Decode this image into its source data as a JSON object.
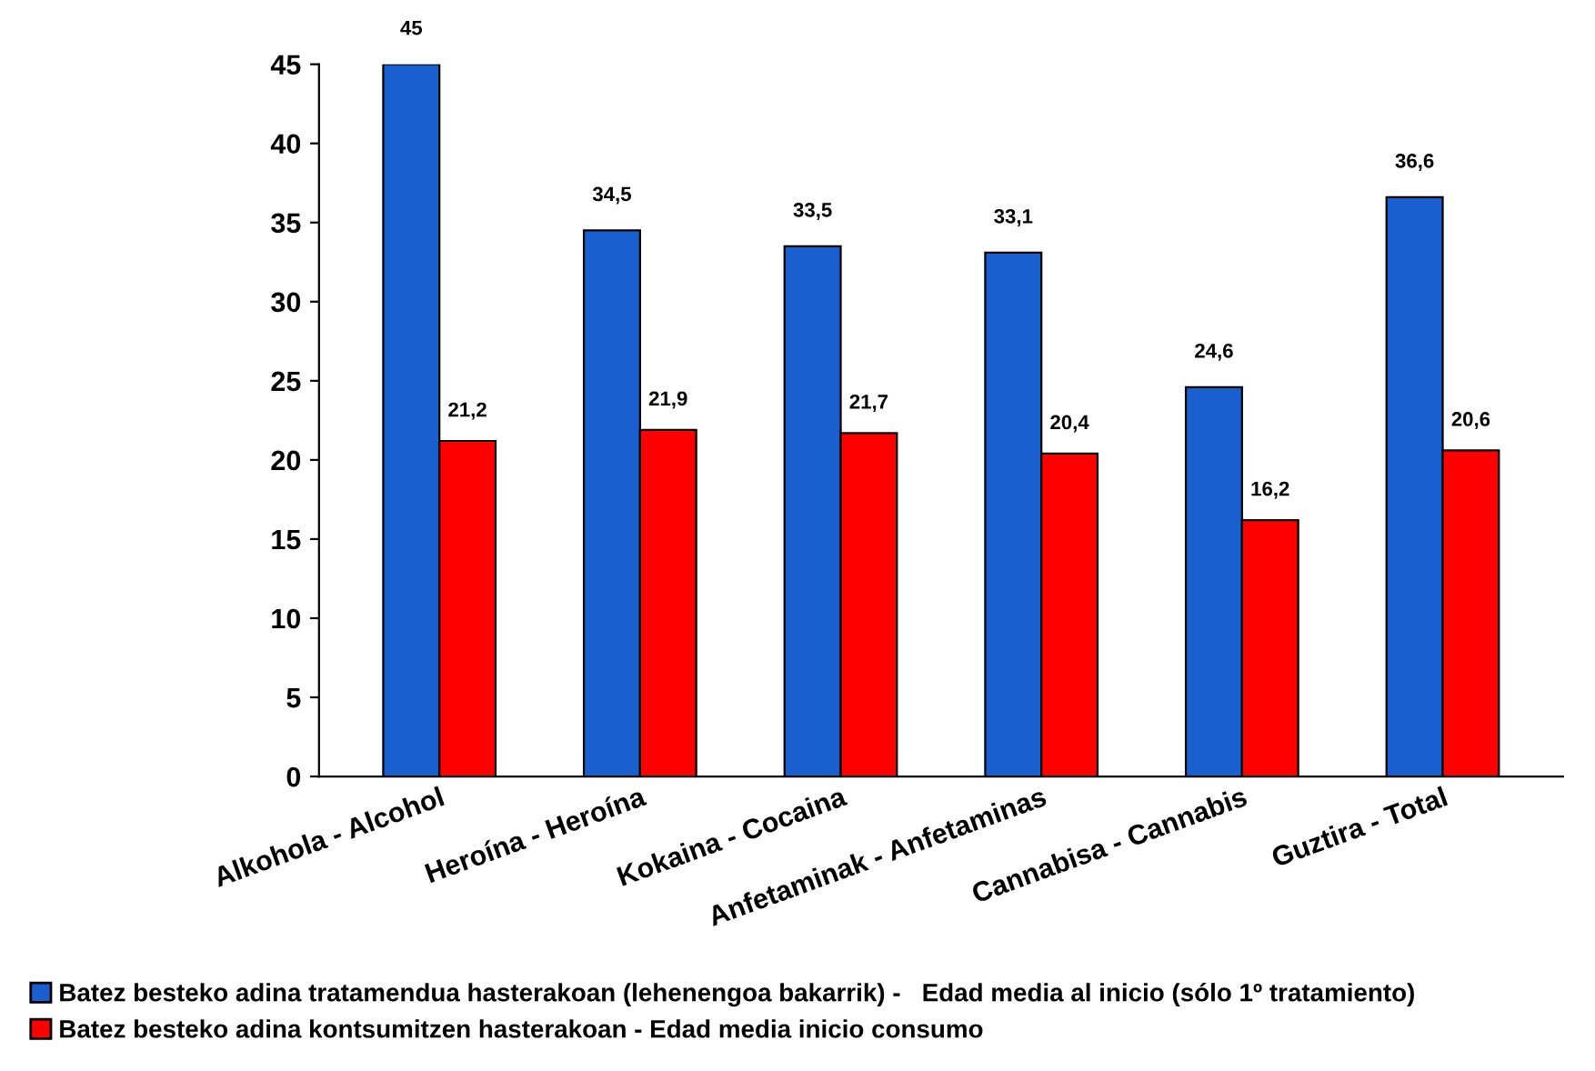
{
  "chart_data": {
    "type": "bar",
    "categories": [
      "Alkohola - Alcohol",
      "Heroína - Heroína",
      "Kokaina - Cocaina",
      "Anfetaminak - Anfetaminas",
      "Cannabisa - Cannabis",
      "Guztira - Total"
    ],
    "series": [
      {
        "name": "Batez besteko adina tratamendua hasterakoan (lehenengoa bakarrik) -   Edad media al inicio (sólo 1º tratamiento)",
        "color": "#1a5fd0",
        "values": [
          45,
          34.5,
          33.5,
          33.1,
          24.6,
          36.6
        ],
        "value_labels": [
          "45",
          "34,5",
          "33,5",
          "33,1",
          "24,6",
          "36,6"
        ]
      },
      {
        "name": "Batez besteko adina kontsumitzen hasterakoan - Edad media inicio consumo",
        "color": "#ff0000",
        "values": [
          21.2,
          21.9,
          21.7,
          20.4,
          16.2,
          20.6
        ],
        "value_labels": [
          "21,2",
          "21,9",
          "21,7",
          "20,4",
          "16,2",
          "20,6"
        ]
      }
    ],
    "ylim": [
      0,
      45
    ],
    "yticks": [
      0,
      5,
      10,
      15,
      20,
      25,
      30,
      35,
      40,
      45
    ],
    "grid": false,
    "legend": "bottom"
  }
}
